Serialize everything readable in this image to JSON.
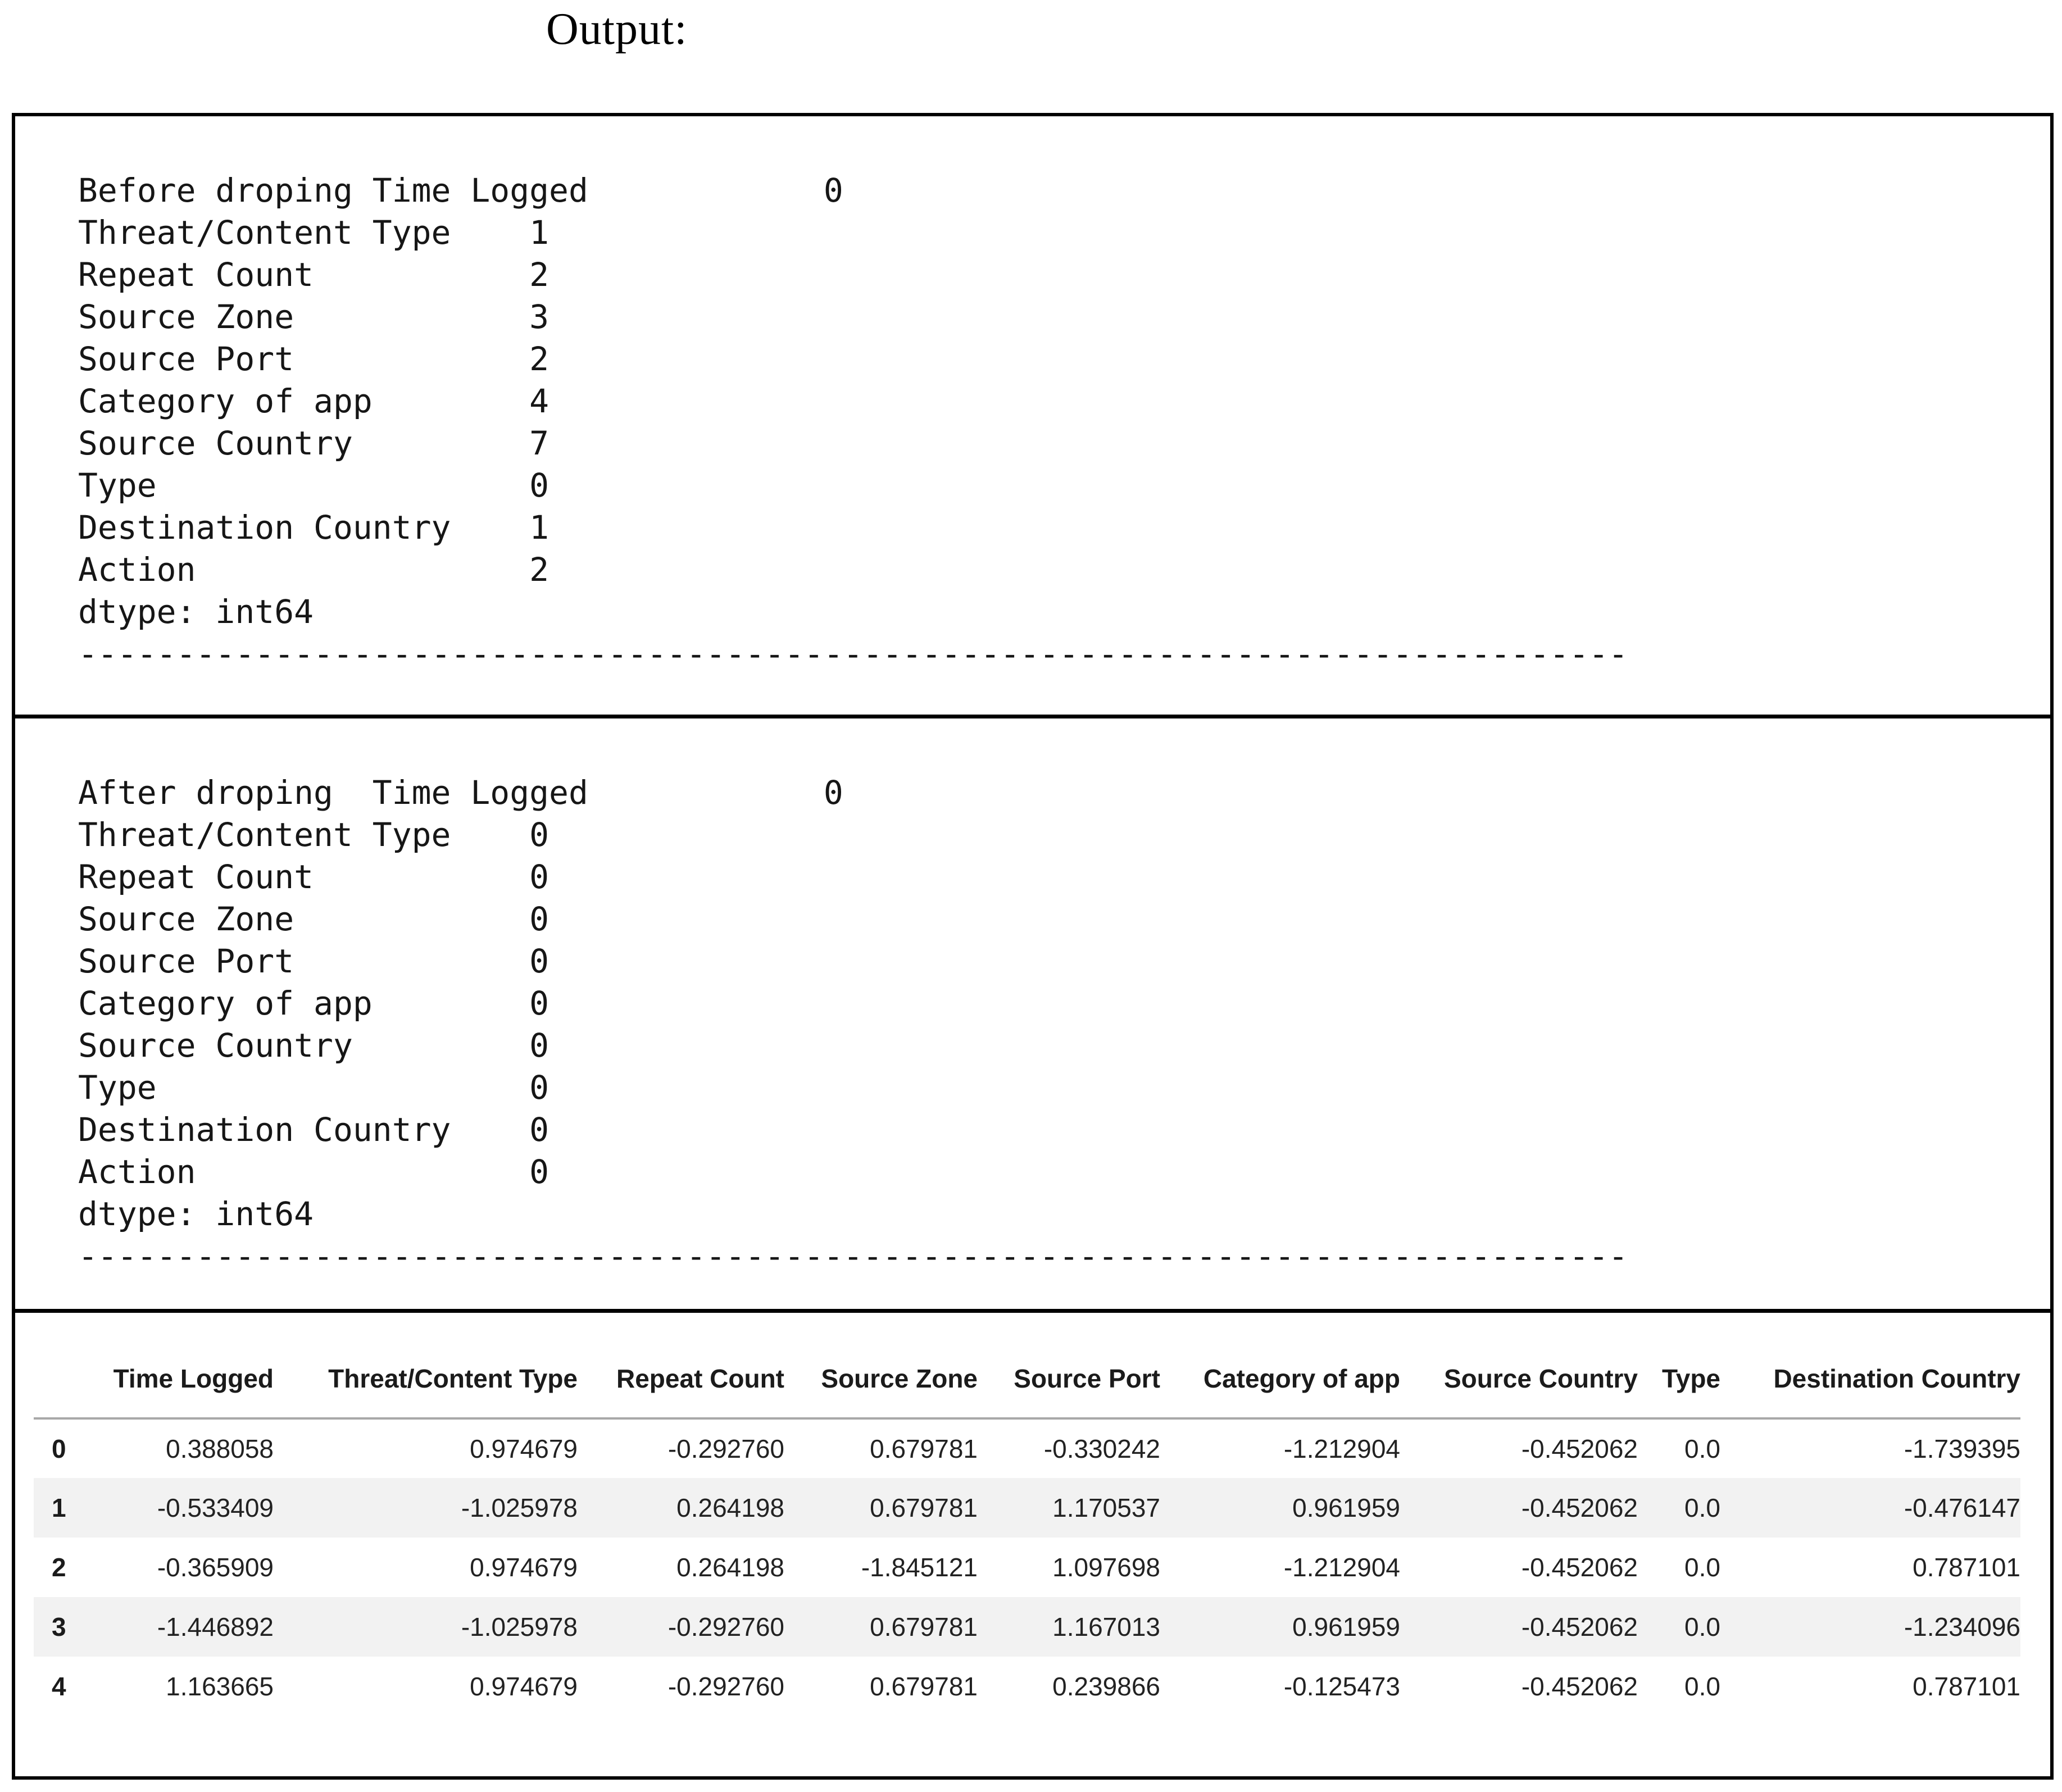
{
  "title": "Output:",
  "sections": {
    "before": {
      "text": "Before droping Time Logged            0\nThreat/Content Type    1\nRepeat Count           2\nSource Zone            3\nSource Port            2\nCategory of app        4\nSource Country         7\nType                   0\nDestination Country    1\nAction                 2\ndtype: int64\n-------------------------------------------------------------------------------"
    },
    "after": {
      "text": "After droping  Time Logged            0\nThreat/Content Type    0\nRepeat Count           0\nSource Zone            0\nSource Port            0\nCategory of app        0\nSource Country         0\nType                   0\nDestination Country    0\nAction                 0\ndtype: int64\n-------------------------------------------------------------------------------"
    }
  },
  "table": {
    "index_header": "",
    "columns": [
      "Time Logged",
      "Threat/Content Type",
      "Repeat Count",
      "Source Zone",
      "Source Port",
      "Category of app",
      "Source Country",
      "Type",
      "Destination Country"
    ],
    "rows": [
      {
        "index": "0",
        "cells": [
          "0.388058",
          "0.974679",
          "-0.292760",
          "0.679781",
          "-0.330242",
          "-1.212904",
          "-0.452062",
          "0.0",
          "-1.739395"
        ]
      },
      {
        "index": "1",
        "cells": [
          "-0.533409",
          "-1.025978",
          "0.264198",
          "0.679781",
          "1.170537",
          "0.961959",
          "-0.452062",
          "0.0",
          "-0.476147"
        ]
      },
      {
        "index": "2",
        "cells": [
          "-0.365909",
          "0.974679",
          "0.264198",
          "-1.845121",
          "1.097698",
          "-1.212904",
          "-0.452062",
          "0.0",
          "0.787101"
        ]
      },
      {
        "index": "3",
        "cells": [
          "-1.446892",
          "-1.025978",
          "-0.292760",
          "0.679781",
          "1.167013",
          "0.961959",
          "-0.452062",
          "0.0",
          "-1.234096"
        ]
      },
      {
        "index": "4",
        "cells": [
          "1.163665",
          "0.974679",
          "-0.292760",
          "0.679781",
          "0.239866",
          "-0.125473",
          "-0.452062",
          "0.0",
          "0.787101"
        ]
      }
    ],
    "colors": {
      "stripe": "#f2f2f2",
      "header_rule": "#a8a8a8",
      "border": "#000000"
    }
  }
}
